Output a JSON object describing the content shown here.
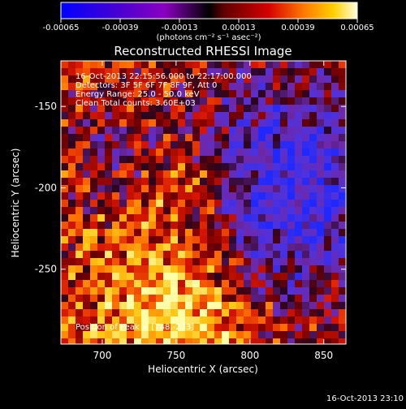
{
  "colorbar": {
    "tick_labels": [
      "-0.00065",
      "-0.00039",
      "-0.00013",
      "0.00013",
      "0.00039",
      "0.00065"
    ],
    "range": [
      -0.00065,
      0.00065
    ],
    "unit_label": "(photons cm⁻² s⁻¹ asec⁻²)"
  },
  "title": "Reconstructed RHESSI Image",
  "info": {
    "line1": "16-Oct-2013 22:15:56.000 to 22:17:00.000",
    "line2": "Detectors: 3F 5F 6F 7F 8F 9F, Att 0",
    "line3": "Energy Range: 25.0 - 50.0 keV",
    "line4": "Clean     Total counts: 3.60E+03"
  },
  "peak_label": "Position of Peak = [748,-273]",
  "axes": {
    "xlabel": "Heliocentric X (arcsec)",
    "ylabel": "Heliocentric Y (arcsec)",
    "x_ticks": [
      "700",
      "750",
      "800",
      "850"
    ],
    "y_ticks": [
      "-150",
      "-200",
      "-250"
    ],
    "x_range": [
      672,
      865
    ],
    "y_range": [
      -296,
      -122
    ]
  },
  "footer_timestamp": "16-Oct-2013 23:10",
  "colors": {
    "background": "#000000",
    "foreground": "#ffffff",
    "map_low": "#2020ff",
    "map_mid": "#6a2a9e",
    "map_high": "#ffffa0"
  }
}
